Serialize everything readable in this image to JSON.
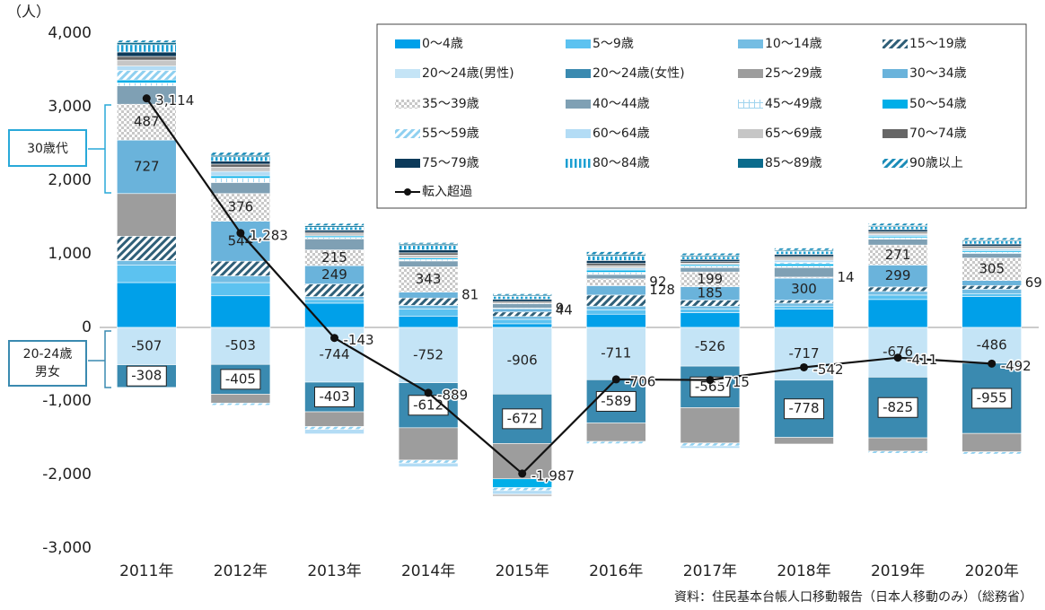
{
  "chart_data": {
    "type": "bar",
    "stacked": true,
    "y_unit": "（人）",
    "source": "資料：住民基本台帳人口移動報告（日本人移動のみ）（総務省）",
    "annotations": [
      "30歳代",
      "20-24歳",
      "男女"
    ],
    "categories": [
      "2011年",
      "2012年",
      "2013年",
      "2014年",
      "2015年",
      "2016年",
      "2017年",
      "2018年",
      "2019年",
      "2020年"
    ],
    "ylim": [
      -3000,
      4000
    ],
    "yticks": [
      {
        "value": -3000,
        "label": "-3,000"
      },
      {
        "value": -2000,
        "label": "-2,000"
      },
      {
        "value": -1000,
        "label": "-1,000"
      },
      0,
      {
        "value": 1000,
        "label": "1,000"
      },
      {
        "value": 2000,
        "label": "2,000"
      },
      {
        "value": 3000,
        "label": "3,000"
      },
      {
        "value": 4000,
        "label": "4,000"
      }
    ],
    "series": [
      {
        "name": "0～4歳",
        "color": "#00a0e9",
        "values": [
          610,
          430,
          330,
          150,
          50,
          180,
          200,
          250,
          380,
          420
        ]
      },
      {
        "name": "5～9歳",
        "color": "#5cc2f0",
        "values": [
          240,
          180,
          50,
          100,
          60,
          60,
          50,
          40,
          60,
          40
        ]
      },
      {
        "name": "10～14歳",
        "color": "#74bde3",
        "values": [
          60,
          90,
          40,
          50,
          40,
          50,
          40,
          40,
          50,
          60
        ]
      },
      {
        "name": "15～19歳",
        "color": "#2f5f78",
        "pattern": "hatch",
        "values": [
          330,
          200,
          170,
          100,
          60,
          150,
          80,
          40,
          60,
          50
        ]
      },
      {
        "name": "20～24歳(男性)",
        "color": "#c4e4f6",
        "show_labels": true,
        "values": [
          -507,
          -503,
          -744,
          -752,
          -906,
          -711,
          -526,
          -717,
          -676,
          -486
        ]
      },
      {
        "name": "20～24歳(女性)",
        "color": "#3a8ab0",
        "show_labels": true,
        "label_box": true,
        "values": [
          -308,
          -405,
          -403,
          -612,
          -672,
          -589,
          -565,
          -778,
          -825,
          -955
        ]
      },
      {
        "name": "25～29歳",
        "color": "#9d9d9d",
        "values": [
          580,
          -120,
          -200,
          -440,
          -480,
          -250,
          -480,
          -90,
          -180,
          -250
        ]
      },
      {
        "name": "30～34歳",
        "color": "#6ab3db",
        "show_labels": true,
        "values": [
          727,
          544,
          249,
          81,
          44,
          128,
          185,
          300,
          299,
          69
        ]
      },
      {
        "name": "35～39歳",
        "color": "#c8c8c8",
        "pattern": "checker",
        "show_labels": true,
        "values": [
          487,
          376,
          215,
          343,
          9,
          92,
          199,
          14,
          271,
          305
        ]
      },
      {
        "name": "40～44歳",
        "color": "#7fa0b4",
        "values": [
          250,
          150,
          150,
          80,
          60,
          60,
          60,
          130,
          80,
          60
        ]
      },
      {
        "name": "45～49歳",
        "color": "#9fd3ee",
        "pattern": "grid",
        "values": [
          40,
          60,
          20,
          20,
          10,
          30,
          20,
          20,
          20,
          20
        ]
      },
      {
        "name": "50～54歳",
        "color": "#00aee8",
        "values": [
          40,
          30,
          20,
          20,
          -120,
          30,
          20,
          30,
          20,
          20
        ]
      },
      {
        "name": "55～59歳",
        "color": "#8fd0f0",
        "pattern": "hatch",
        "values": [
          130,
          -30,
          -40,
          -40,
          -40,
          -30,
          -40,
          20,
          -30,
          -30
        ]
      },
      {
        "name": "60～64歳",
        "color": "#b3dcf5",
        "values": [
          60,
          60,
          -60,
          -50,
          -50,
          30,
          -30,
          30,
          20,
          20
        ]
      },
      {
        "name": "65～69歳",
        "color": "#c6c6c6",
        "values": [
          80,
          60,
          30,
          40,
          -30,
          30,
          20,
          30,
          20,
          20
        ]
      },
      {
        "name": "70～74歳",
        "color": "#666666",
        "values": [
          50,
          40,
          20,
          30,
          20,
          30,
          20,
          20,
          20,
          20
        ]
      },
      {
        "name": "75～79歳",
        "color": "#0c3a5a",
        "values": [
          60,
          40,
          30,
          40,
          30,
          40,
          30,
          30,
          30,
          30
        ]
      },
      {
        "name": "80～84歳",
        "color": "#1c9fd2",
        "pattern": "vlines",
        "values": [
          100,
          60,
          40,
          60,
          40,
          60,
          40,
          40,
          40,
          40
        ]
      },
      {
        "name": "85～89歳",
        "color": "#0b6b8c",
        "values": [
          30,
          20,
          20,
          20,
          15,
          20,
          15,
          15,
          15,
          15
        ]
      },
      {
        "name": "90歳以上",
        "color": "#1a8cb8",
        "pattern": "hatch",
        "values": [
          30,
          40,
          30,
          20,
          20,
          40,
          30,
          30,
          30,
          30
        ]
      }
    ],
    "line": {
      "name": "転入超過",
      "color": "#111111",
      "values": [
        3114,
        1283,
        -143,
        -889,
        -1987,
        -706,
        -715,
        -542,
        -411,
        -492
      ],
      "value_labels": [
        "3,114",
        "1,283",
        "-143",
        "-889",
        "-1,987",
        "-706",
        "-715",
        "-542",
        "-411",
        "-492"
      ]
    }
  }
}
